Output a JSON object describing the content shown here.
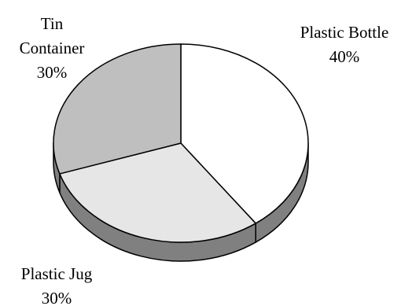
{
  "chart_data": {
    "type": "pie",
    "style": "3d",
    "categories": [
      "Plastic Bottle",
      "Plastic Jug",
      "Tin Container"
    ],
    "values": [
      40,
      30,
      30
    ],
    "value_labels": [
      "40%",
      "30%",
      "30%"
    ],
    "colors": {
      "Plastic Bottle": "#ffffff",
      "Plastic Jug": "#e6e6e6",
      "Tin Container": "#bfbfbf",
      "side": "#808080",
      "outline": "#000000"
    },
    "label_lines": {
      "Plastic Bottle": [
        "Plastic Bottle"
      ],
      "Plastic Jug": [
        "Plastic Jug"
      ],
      "Tin Container": [
        "Tin",
        "Container"
      ]
    }
  }
}
